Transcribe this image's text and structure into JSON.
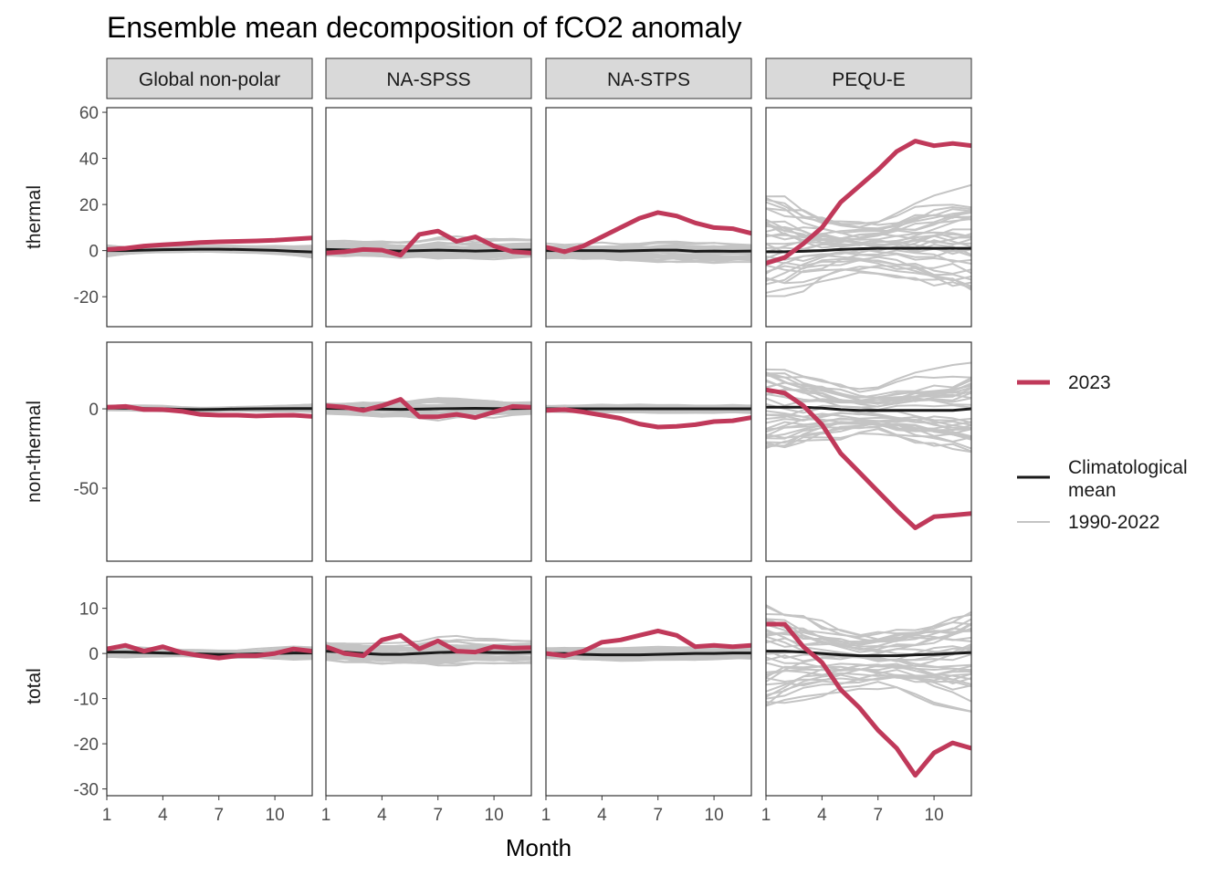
{
  "chart_data": {
    "type": "line",
    "title": "Ensemble mean decomposition of fCO2 anomaly",
    "xlabel": "Month",
    "x": [
      1,
      2,
      3,
      4,
      5,
      6,
      7,
      8,
      9,
      10,
      11,
      12
    ],
    "x_ticks": [
      1,
      4,
      7,
      10
    ],
    "grid": false,
    "legend_position": "right",
    "columns": [
      "Global non-polar",
      "NA-SPSS",
      "NA-STPS",
      "PEQU-E"
    ],
    "rows": [
      {
        "label": "thermal",
        "ylim": [
          -33,
          62
        ],
        "ticks": [
          60,
          40,
          20,
          0,
          -20
        ],
        "tick_labels": [
          "60",
          "40",
          "20",
          "0",
          "-20"
        ]
      },
      {
        "label": "non-thermal",
        "ylim": [
          -96,
          42
        ],
        "ticks": [
          0,
          -50
        ],
        "tick_labels": [
          "0",
          "-50"
        ]
      },
      {
        "label": "total",
        "ylim": [
          -31.5,
          17
        ],
        "ticks": [
          10,
          0,
          -10,
          -20,
          -30
        ],
        "tick_labels": [
          "10",
          "0",
          "-10",
          "-20",
          "-30"
        ]
      }
    ],
    "legend": {
      "y2023": "2023",
      "climatology_line1": "Climatological",
      "climatology_line2": "mean",
      "historical": "1990-2022"
    },
    "colors": {
      "y2023": "#c0395a",
      "climatology": "#1a1a1a",
      "historical": "#c4c4c4",
      "strip_fill": "#d9d9d9"
    },
    "series_2023": [
      [
        [
          0.5,
          1,
          2,
          2.5,
          3,
          3.5,
          3.8,
          4,
          4.2,
          4.5,
          5,
          5.5
        ],
        [
          -1,
          -0.5,
          0.5,
          0.2,
          -2,
          7,
          8.5,
          4,
          6,
          2,
          -0.5,
          -1
        ],
        [
          1.5,
          -0.5,
          2,
          6,
          10,
          14,
          16.5,
          15,
          12,
          10,
          9.5,
          7.5
        ],
        [
          -5.5,
          -3,
          3,
          10,
          21,
          28,
          35,
          43,
          47.5,
          45.5,
          46.5,
          45.5
        ]
      ],
      [
        [
          1,
          1.5,
          -0.5,
          -0.5,
          -1.5,
          -3.5,
          -4,
          -4,
          -4.5,
          -4.2,
          -4,
          -4.8
        ],
        [
          2,
          1,
          -1,
          2,
          6,
          -5,
          -5,
          -3.5,
          -5.5,
          -2,
          1.5,
          1
        ],
        [
          -1,
          -0.5,
          -2,
          -4,
          -6,
          -9.5,
          -11.5,
          -11,
          -10,
          -8,
          -7.5,
          -5.5
        ],
        [
          12,
          10,
          2,
          -10,
          -28,
          -40,
          -52,
          -64,
          -75,
          -68,
          -67,
          -66
        ]
      ],
      [
        [
          1,
          1.8,
          0.5,
          1.5,
          0.2,
          -0.5,
          -1,
          -0.5,
          -0.5,
          0,
          1,
          0.5
        ],
        [
          1.5,
          0,
          -0.5,
          3,
          4,
          1,
          2.8,
          0.5,
          0.3,
          1.5,
          1.2,
          1.3
        ],
        [
          0,
          -0.5,
          0.5,
          2.5,
          3,
          4,
          5,
          4,
          1.5,
          1.8,
          1.5,
          1.8
        ],
        [
          6.5,
          6.5,
          1.5,
          -2,
          -8,
          -12,
          -17,
          -21,
          -27,
          -22,
          -19.8,
          -21
        ]
      ]
    ],
    "series_climatology": [
      [
        [
          0,
          0,
          0.2,
          0.4,
          0.5,
          0.6,
          0.6,
          0.5,
          0.3,
          0.1,
          -0.3,
          -0.6
        ],
        [
          0.5,
          0.3,
          0.2,
          0,
          -0.2,
          0,
          0.2,
          0,
          -0.2,
          0,
          0.2,
          0.3
        ],
        [
          0,
          0,
          0,
          0,
          -0.2,
          0,
          0.2,
          0.2,
          -0.3,
          -0.2,
          -0.3,
          -0.2
        ],
        [
          -0.5,
          -0.5,
          -0.3,
          0,
          0.5,
          0.8,
          1,
          1,
          1,
          1,
          1,
          1
        ]
      ],
      [
        [
          0.5,
          0.5,
          0.2,
          0,
          -0.3,
          -0.5,
          -0.3,
          -0.1,
          0,
          0.1,
          0.2,
          0.2
        ],
        [
          0.3,
          0.2,
          0,
          -0.2,
          -0.3,
          -0.2,
          0,
          0.2,
          0.3,
          0.2,
          0.2,
          0.3
        ],
        [
          0,
          0,
          0,
          0,
          0,
          0,
          0,
          0,
          0,
          0,
          0,
          0
        ],
        [
          1,
          1,
          1,
          0.5,
          -0.5,
          -1,
          -1,
          -1,
          -1,
          -1,
          -1,
          0
        ]
      ],
      [
        [
          0.3,
          0.3,
          0.2,
          0.1,
          0,
          -0.1,
          -0.2,
          -0.2,
          -0.1,
          0,
          0.1,
          0.1
        ],
        [
          0.5,
          0.3,
          0,
          -0.2,
          -0.2,
          0,
          0.2,
          0.3,
          0.3,
          0.2,
          0.2,
          0.3
        ],
        [
          0,
          0,
          -0.2,
          -0.3,
          -0.3,
          -0.3,
          -0.2,
          -0.1,
          0,
          0,
          0.1,
          0.1
        ],
        [
          0.5,
          0.5,
          0.3,
          0,
          -0.3,
          -0.5,
          -0.5,
          -0.5,
          -0.3,
          -0.2,
          0,
          0.2
        ]
      ]
    ],
    "historical_note_shown": false,
    "historical_years": 33,
    "historical_spread": [
      [
        [
          3,
          2,
          1.5,
          1.5,
          1.5,
          1.5,
          1.5,
          1.5,
          1.5,
          1.8,
          2,
          2.5
        ],
        [
          4,
          4,
          4,
          4,
          4,
          4,
          5,
          5,
          4.5,
          4.5,
          4,
          4
        ],
        [
          4,
          4,
          4,
          4,
          4,
          4,
          4.5,
          4.5,
          4.5,
          4.5,
          4,
          4
        ],
        [
          28,
          24,
          20,
          16,
          13,
          12,
          12,
          14,
          17,
          20,
          22,
          24
        ]
      ],
      [
        [
          2,
          2,
          2,
          1.8,
          1.5,
          1.5,
          1.5,
          1.5,
          1.8,
          2,
          2.2,
          2.5
        ],
        [
          4,
          4,
          5,
          5,
          5,
          6,
          7,
          6,
          5,
          5,
          4,
          4
        ],
        [
          3,
          3,
          3,
          3,
          3,
          3,
          3,
          3,
          3,
          3,
          3,
          3
        ],
        [
          30,
          28,
          24,
          20,
          17,
          14,
          14,
          17,
          20,
          22,
          24,
          26
        ]
      ],
      [
        [
          1.5,
          1.5,
          1.2,
          1,
          0.8,
          0.8,
          0.8,
          0.8,
          1,
          1.2,
          1.5,
          1.5
        ],
        [
          2.5,
          2.5,
          2.5,
          2.5,
          2.5,
          2.5,
          3,
          3,
          2.5,
          2.5,
          2.5,
          2.5
        ],
        [
          1.5,
          1.5,
          1.5,
          1.5,
          1.5,
          1.5,
          1.5,
          1.5,
          1.5,
          1.5,
          1.5,
          1.5
        ],
        [
          14,
          12,
          10,
          8,
          7,
          6.5,
          6.5,
          7,
          8,
          9,
          10,
          11
        ]
      ]
    ]
  }
}
